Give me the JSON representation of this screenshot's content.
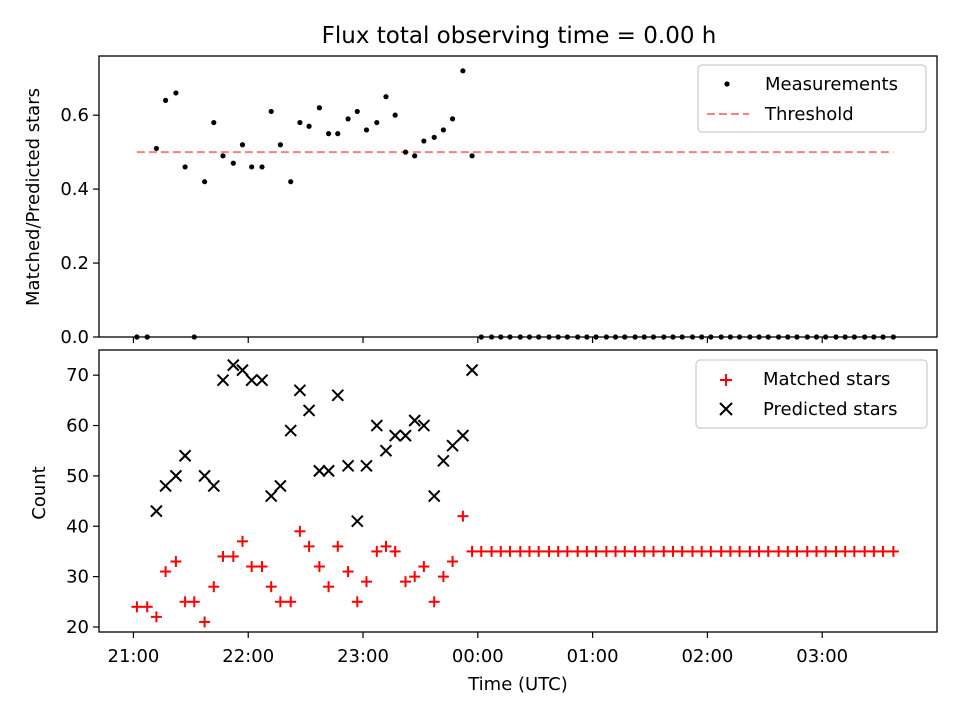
{
  "figure": {
    "title": "Flux total observing time = 0.00 h",
    "xlabel": "Time (UTC)",
    "x_tick_labels": [
      "21:00",
      "22:00",
      "23:00",
      "00:00",
      "01:00",
      "02:00",
      "03:00"
    ]
  },
  "chart_data": [
    {
      "type": "scatter",
      "panel": "top",
      "title": "Flux total observing time = 0.00 h",
      "ylabel": "Matched/Predicted stars",
      "xlabel": "",
      "x_unit": "hours since 21:00 UTC",
      "xlim": [
        -0.3,
        7.0
      ],
      "ylim": [
        0.0,
        0.76
      ],
      "y_ticks": [
        0.0,
        0.2,
        0.4,
        0.6
      ],
      "y_tick_labels": [
        "0.0",
        "0.2",
        "0.4",
        "0.6"
      ],
      "legend": {
        "placement": "top-right",
        "entries": [
          "Measurements",
          "Threshold"
        ]
      },
      "series": [
        {
          "name": "Measurements",
          "marker": "dot",
          "color": "#000000",
          "x": [
            0.03,
            0.12,
            0.2,
            0.28,
            0.37,
            0.45,
            0.53,
            0.62,
            0.7,
            0.78,
            0.87,
            0.95,
            1.03,
            1.12,
            1.2,
            1.28,
            1.37,
            1.45,
            1.53,
            1.62,
            1.7,
            1.78,
            1.87,
            1.95,
            2.03,
            2.12,
            2.2,
            2.28,
            2.37,
            2.45,
            2.53,
            2.62,
            2.7,
            2.78,
            2.87,
            2.95,
            3.03,
            3.12,
            3.2,
            3.28,
            3.37,
            3.45,
            3.53,
            3.62,
            3.7,
            3.78,
            3.87,
            3.95,
            4.03,
            4.12,
            4.2,
            4.28,
            4.37,
            4.45,
            4.53,
            4.62,
            4.7,
            4.78,
            4.87,
            4.95,
            5.03,
            5.12,
            5.2,
            5.28,
            5.37,
            5.45,
            5.53,
            5.62,
            5.7,
            5.78,
            5.87,
            5.95,
            6.03,
            6.12,
            6.2,
            6.28,
            6.37,
            6.45,
            6.53,
            6.62
          ],
          "values": [
            0.0,
            0.0,
            0.51,
            0.64,
            0.66,
            0.46,
            0.0,
            0.42,
            0.58,
            0.49,
            0.47,
            0.52,
            0.46,
            0.46,
            0.61,
            0.52,
            0.42,
            0.58,
            0.57,
            0.62,
            0.55,
            0.55,
            0.59,
            0.61,
            0.56,
            0.58,
            0.65,
            0.6,
            0.5,
            0.49,
            0.53,
            0.54,
            0.56,
            0.59,
            0.72,
            0.49,
            0.0,
            0.0,
            0.0,
            0.0,
            0.0,
            0.0,
            0.0,
            0.0,
            0.0,
            0.0,
            0.0,
            0.0,
            0.0,
            0.0,
            0.0,
            0.0,
            0.0,
            0.0,
            0.0,
            0.0,
            0.0,
            0.0,
            0.0,
            0.0,
            0.0,
            0.0,
            0.0,
            0.0,
            0.0,
            0.0,
            0.0,
            0.0,
            0.0,
            0.0,
            0.0,
            0.0,
            0.0,
            0.0,
            0.0,
            0.0,
            0.0,
            0.0,
            0.0,
            0.0
          ]
        },
        {
          "name": "Threshold",
          "type": "line",
          "style": "dashed",
          "color": "#ff7f7f",
          "x": [
            0.03,
            6.62
          ],
          "values": [
            0.5,
            0.5
          ]
        }
      ]
    },
    {
      "type": "scatter",
      "panel": "bottom",
      "title": "",
      "ylabel": "Count",
      "xlabel": "Time (UTC)",
      "x_unit": "hours since 21:00 UTC",
      "xlim": [
        -0.3,
        7.0
      ],
      "ylim": [
        19,
        75
      ],
      "y_ticks": [
        20,
        30,
        40,
        50,
        60,
        70
      ],
      "y_tick_labels": [
        "20",
        "30",
        "40",
        "50",
        "60",
        "70"
      ],
      "x_ticks": [
        0,
        1,
        2,
        3,
        4,
        5,
        6
      ],
      "x_tick_labels": [
        "21:00",
        "22:00",
        "23:00",
        "00:00",
        "01:00",
        "02:00",
        "03:00"
      ],
      "legend": {
        "placement": "top-right",
        "entries": [
          "Matched stars",
          "Predicted stars"
        ]
      },
      "series": [
        {
          "name": "Matched stars",
          "marker": "plus",
          "color": "#ff0000",
          "x": [
            0.03,
            0.12,
            0.2,
            0.28,
            0.37,
            0.45,
            0.53,
            0.62,
            0.7,
            0.78,
            0.87,
            0.95,
            1.03,
            1.12,
            1.2,
            1.28,
            1.37,
            1.45,
            1.53,
            1.62,
            1.7,
            1.78,
            1.87,
            1.95,
            2.03,
            2.12,
            2.2,
            2.28,
            2.37,
            2.45,
            2.53,
            2.62,
            2.7,
            2.78,
            2.87,
            2.95,
            3.03,
            3.12,
            3.2,
            3.28,
            3.37,
            3.45,
            3.53,
            3.62,
            3.7,
            3.78,
            3.87,
            3.95,
            4.03,
            4.12,
            4.2,
            4.28,
            4.37,
            4.45,
            4.53,
            4.62,
            4.7,
            4.78,
            4.87,
            4.95,
            5.03,
            5.12,
            5.2,
            5.28,
            5.37,
            5.45,
            5.53,
            5.62,
            5.7,
            5.78,
            5.87,
            5.95,
            6.03,
            6.12,
            6.2,
            6.28,
            6.37,
            6.45,
            6.53,
            6.62
          ],
          "values": [
            24,
            24,
            22,
            31,
            33,
            25,
            25,
            21,
            28,
            34,
            34,
            37,
            32,
            32,
            28,
            25,
            25,
            39,
            36,
            32,
            28,
            36,
            31,
            25,
            29,
            35,
            36,
            35,
            29,
            30,
            32,
            25,
            30,
            33,
            42,
            35,
            35,
            35,
            35,
            35,
            35,
            35,
            35,
            35,
            35,
            35,
            35,
            35,
            35,
            35,
            35,
            35,
            35,
            35,
            35,
            35,
            35,
            35,
            35,
            35,
            35,
            35,
            35,
            35,
            35,
            35,
            35,
            35,
            35,
            35,
            35,
            35,
            35,
            35,
            35,
            35,
            35,
            35,
            35,
            35
          ]
        },
        {
          "name": "Predicted stars",
          "marker": "x",
          "color": "#000000",
          "x": [
            0.2,
            0.28,
            0.37,
            0.45,
            0.62,
            0.7,
            0.78,
            0.87,
            0.95,
            1.03,
            1.12,
            1.2,
            1.28,
            1.37,
            1.45,
            1.53,
            1.62,
            1.7,
            1.78,
            1.87,
            1.95,
            2.03,
            2.12,
            2.2,
            2.28,
            2.37,
            2.45,
            2.53,
            2.62,
            2.7,
            2.78,
            2.87,
            2.95
          ],
          "values": [
            43,
            48,
            50,
            54,
            50,
            48,
            69,
            72,
            71,
            69,
            69,
            46,
            48,
            59,
            67,
            63,
            51,
            51,
            66,
            52,
            41,
            52,
            60,
            55,
            58,
            58,
            61,
            60,
            46,
            53,
            56,
            58,
            71
          ]
        }
      ]
    }
  ]
}
